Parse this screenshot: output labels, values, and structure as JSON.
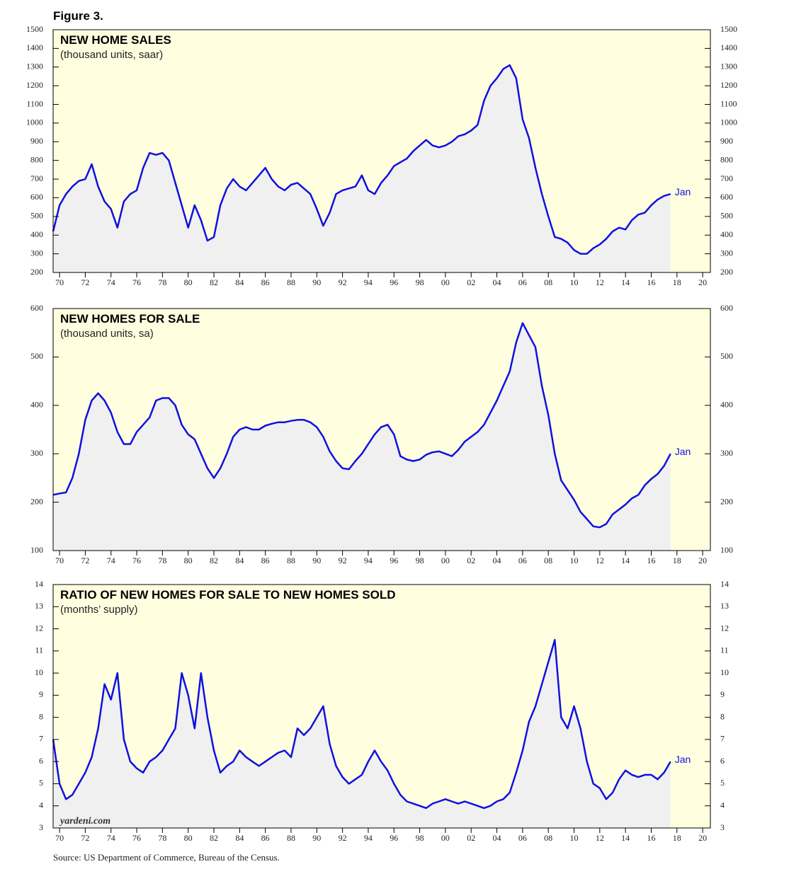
{
  "figure_label": "Figure 3.",
  "watermark": "yardeni.com",
  "source": "Source: US Department of Commerce, Bureau of the Census.",
  "chart_data": [
    {
      "type": "line",
      "title": "NEW HOME SALES",
      "subtitle": "(thousand units, saar)",
      "annotation": "Jan",
      "color": "#1010e0",
      "fill": "#f0f0f0",
      "background": "#ffffe0",
      "xlim": [
        1969.5,
        2020.6
      ],
      "ylim": [
        200,
        1500
      ],
      "yticks": [
        200,
        300,
        400,
        500,
        600,
        700,
        800,
        900,
        1000,
        1100,
        1200,
        1300,
        1400,
        1500
      ],
      "xticks": [
        {
          "value": 1970,
          "label": "70"
        },
        {
          "value": 1972,
          "label": "72"
        },
        {
          "value": 1974,
          "label": "74"
        },
        {
          "value": 1976,
          "label": "76"
        },
        {
          "value": 1978,
          "label": "78"
        },
        {
          "value": 1980,
          "label": "80"
        },
        {
          "value": 1982,
          "label": "82"
        },
        {
          "value": 1984,
          "label": "84"
        },
        {
          "value": 1986,
          "label": "86"
        },
        {
          "value": 1988,
          "label": "88"
        },
        {
          "value": 1990,
          "label": "90"
        },
        {
          "value": 1992,
          "label": "92"
        },
        {
          "value": 1994,
          "label": "94"
        },
        {
          "value": 1996,
          "label": "96"
        },
        {
          "value": 1998,
          "label": "98"
        },
        {
          "value": 2000,
          "label": "00"
        },
        {
          "value": 2002,
          "label": "02"
        },
        {
          "value": 2004,
          "label": "04"
        },
        {
          "value": 2006,
          "label": "06"
        },
        {
          "value": 2008,
          "label": "08"
        },
        {
          "value": 2010,
          "label": "10"
        },
        {
          "value": 2012,
          "label": "12"
        },
        {
          "value": 2014,
          "label": "14"
        },
        {
          "value": 2016,
          "label": "16"
        },
        {
          "value": 2018,
          "label": "18"
        },
        {
          "value": 2020,
          "label": "20"
        }
      ],
      "x": [
        1969.5,
        1970,
        1970.5,
        1971,
        1971.5,
        1972,
        1972.5,
        1973,
        1973.5,
        1974,
        1974.5,
        1975,
        1975.5,
        1976,
        1976.5,
        1977,
        1977.5,
        1978,
        1978.5,
        1979,
        1979.5,
        1980,
        1980.5,
        1981,
        1981.5,
        1982,
        1982.5,
        1983,
        1983.5,
        1984,
        1984.5,
        1985,
        1985.5,
        1986,
        1986.5,
        1987,
        1987.5,
        1988,
        1988.5,
        1989,
        1989.5,
        1990,
        1990.5,
        1991,
        1991.5,
        1992,
        1992.5,
        1993,
        1993.5,
        1994,
        1994.5,
        1995,
        1995.5,
        1996,
        1996.5,
        1997,
        1997.5,
        1998,
        1998.5,
        1999,
        1999.5,
        2000,
        2000.5,
        2001,
        2001.5,
        2002,
        2002.5,
        2003,
        2003.5,
        2004,
        2004.5,
        2005,
        2005.5,
        2006,
        2006.5,
        2007,
        2007.5,
        2008,
        2008.5,
        2009,
        2009.5,
        2010,
        2010.5,
        2011,
        2011.5,
        2012,
        2012.5,
        2013,
        2013.5,
        2014,
        2014.5,
        2015,
        2015.5,
        2016,
        2016.5,
        2017,
        2017.5
      ],
      "values": [
        420,
        560,
        620,
        660,
        690,
        700,
        780,
        660,
        580,
        540,
        440,
        580,
        620,
        640,
        760,
        840,
        830,
        840,
        800,
        680,
        560,
        440,
        560,
        480,
        370,
        390,
        560,
        650,
        700,
        660,
        640,
        680,
        720,
        760,
        700,
        660,
        640,
        670,
        680,
        650,
        620,
        540,
        450,
        520,
        620,
        640,
        650,
        660,
        720,
        640,
        620,
        680,
        720,
        770,
        790,
        810,
        850,
        880,
        910,
        880,
        870,
        880,
        900,
        930,
        940,
        960,
        990,
        1120,
        1200,
        1240,
        1290,
        1310,
        1240,
        1020,
        920,
        760,
        620,
        500,
        390,
        380,
        360,
        320,
        300,
        300,
        330,
        350,
        380,
        420,
        440,
        430,
        480,
        510,
        520,
        560,
        590,
        610,
        620
      ]
    },
    {
      "type": "line",
      "title": "NEW HOMES FOR SALE",
      "subtitle": "(thousand units, sa)",
      "annotation": "Jan",
      "color": "#1010e0",
      "fill": "#f0f0f0",
      "background": "#ffffe0",
      "xlim": [
        1969.5,
        2020.6
      ],
      "ylim": [
        100,
        600
      ],
      "yticks": [
        100,
        200,
        300,
        400,
        500,
        600
      ],
      "xticks": [
        {
          "value": 1970,
          "label": "70"
        },
        {
          "value": 1972,
          "label": "72"
        },
        {
          "value": 1974,
          "label": "74"
        },
        {
          "value": 1976,
          "label": "76"
        },
        {
          "value": 1978,
          "label": "78"
        },
        {
          "value": 1980,
          "label": "80"
        },
        {
          "value": 1982,
          "label": "82"
        },
        {
          "value": 1984,
          "label": "84"
        },
        {
          "value": 1986,
          "label": "86"
        },
        {
          "value": 1988,
          "label": "88"
        },
        {
          "value": 1990,
          "label": "90"
        },
        {
          "value": 1992,
          "label": "92"
        },
        {
          "value": 1994,
          "label": "94"
        },
        {
          "value": 1996,
          "label": "96"
        },
        {
          "value": 1998,
          "label": "98"
        },
        {
          "value": 2000,
          "label": "00"
        },
        {
          "value": 2002,
          "label": "02"
        },
        {
          "value": 2004,
          "label": "04"
        },
        {
          "value": 2006,
          "label": "06"
        },
        {
          "value": 2008,
          "label": "08"
        },
        {
          "value": 2010,
          "label": "10"
        },
        {
          "value": 2012,
          "label": "12"
        },
        {
          "value": 2014,
          "label": "14"
        },
        {
          "value": 2016,
          "label": "16"
        },
        {
          "value": 2018,
          "label": "18"
        },
        {
          "value": 2020,
          "label": "20"
        }
      ],
      "x": [
        1969.5,
        1970,
        1970.5,
        1971,
        1971.5,
        1972,
        1972.5,
        1973,
        1973.5,
        1974,
        1974.5,
        1975,
        1975.5,
        1976,
        1976.5,
        1977,
        1977.5,
        1978,
        1978.5,
        1979,
        1979.5,
        1980,
        1980.5,
        1981,
        1981.5,
        1982,
        1982.5,
        1983,
        1983.5,
        1984,
        1984.5,
        1985,
        1985.5,
        1986,
        1986.5,
        1987,
        1987.5,
        1988,
        1988.5,
        1989,
        1989.5,
        1990,
        1990.5,
        1991,
        1991.5,
        1992,
        1992.5,
        1993,
        1993.5,
        1994,
        1994.5,
        1995,
        1995.5,
        1996,
        1996.5,
        1997,
        1997.5,
        1998,
        1998.5,
        1999,
        1999.5,
        2000,
        2000.5,
        2001,
        2001.5,
        2002,
        2002.5,
        2003,
        2003.5,
        2004,
        2004.5,
        2005,
        2005.5,
        2006,
        2006.5,
        2007,
        2007.5,
        2008,
        2008.5,
        2009,
        2009.5,
        2010,
        2010.5,
        2011,
        2011.5,
        2012,
        2012.5,
        2013,
        2013.5,
        2014,
        2014.5,
        2015,
        2015.5,
        2016,
        2016.5,
        2017,
        2017.5
      ],
      "values": [
        215,
        218,
        220,
        250,
        300,
        370,
        410,
        425,
        410,
        385,
        345,
        320,
        320,
        345,
        360,
        375,
        410,
        415,
        415,
        400,
        360,
        340,
        330,
        300,
        270,
        250,
        270,
        300,
        335,
        350,
        355,
        350,
        350,
        358,
        362,
        365,
        365,
        368,
        370,
        370,
        365,
        355,
        335,
        305,
        285,
        270,
        268,
        285,
        300,
        320,
        340,
        355,
        360,
        340,
        295,
        288,
        285,
        288,
        298,
        303,
        305,
        300,
        295,
        308,
        325,
        335,
        345,
        360,
        385,
        410,
        440,
        470,
        530,
        570,
        545,
        520,
        440,
        380,
        300,
        245,
        225,
        205,
        180,
        165,
        150,
        148,
        155,
        175,
        185,
        195,
        208,
        215,
        235,
        248,
        258,
        275,
        300
      ]
    },
    {
      "type": "line",
      "title": "RATIO OF NEW HOMES FOR SALE TO NEW HOMES SOLD",
      "subtitle": "(months’ supply)",
      "annotation": "Jan",
      "color": "#1010e0",
      "fill": "#f0f0f0",
      "background": "#ffffe0",
      "xlim": [
        1969.5,
        2020.6
      ],
      "ylim": [
        3,
        14
      ],
      "yticks": [
        3,
        4,
        5,
        6,
        7,
        8,
        9,
        10,
        11,
        12,
        13,
        14
      ],
      "xticks": [
        {
          "value": 1970,
          "label": "70"
        },
        {
          "value": 1972,
          "label": "72"
        },
        {
          "value": 1974,
          "label": "74"
        },
        {
          "value": 1976,
          "label": "76"
        },
        {
          "value": 1978,
          "label": "78"
        },
        {
          "value": 1980,
          "label": "80"
        },
        {
          "value": 1982,
          "label": "82"
        },
        {
          "value": 1984,
          "label": "84"
        },
        {
          "value": 1986,
          "label": "86"
        },
        {
          "value": 1988,
          "label": "88"
        },
        {
          "value": 1990,
          "label": "90"
        },
        {
          "value": 1992,
          "label": "92"
        },
        {
          "value": 1994,
          "label": "94"
        },
        {
          "value": 1996,
          "label": "96"
        },
        {
          "value": 1998,
          "label": "98"
        },
        {
          "value": 2000,
          "label": "00"
        },
        {
          "value": 2002,
          "label": "02"
        },
        {
          "value": 2004,
          "label": "04"
        },
        {
          "value": 2006,
          "label": "06"
        },
        {
          "value": 2008,
          "label": "08"
        },
        {
          "value": 2010,
          "label": "10"
        },
        {
          "value": 2012,
          "label": "12"
        },
        {
          "value": 2014,
          "label": "14"
        },
        {
          "value": 2016,
          "label": "16"
        },
        {
          "value": 2018,
          "label": "18"
        },
        {
          "value": 2020,
          "label": "20"
        }
      ],
      "x": [
        1969.5,
        1970,
        1970.5,
        1971,
        1971.5,
        1972,
        1972.5,
        1973,
        1973.5,
        1974,
        1974.5,
        1975,
        1975.5,
        1976,
        1976.5,
        1977,
        1977.5,
        1978,
        1978.5,
        1979,
        1979.5,
        1980,
        1980.5,
        1981,
        1981.5,
        1982,
        1982.5,
        1983,
        1983.5,
        1984,
        1984.5,
        1985,
        1985.5,
        1986,
        1986.5,
        1987,
        1987.5,
        1988,
        1988.5,
        1989,
        1989.5,
        1990,
        1990.5,
        1991,
        1991.5,
        1992,
        1992.5,
        1993,
        1993.5,
        1994,
        1994.5,
        1995,
        1995.5,
        1996,
        1996.5,
        1997,
        1997.5,
        1998,
        1998.5,
        1999,
        1999.5,
        2000,
        2000.5,
        2001,
        2001.5,
        2002,
        2002.5,
        2003,
        2003.5,
        2004,
        2004.5,
        2005,
        2005.5,
        2006,
        2006.5,
        2007,
        2007.5,
        2008,
        2008.5,
        2009,
        2009.5,
        2010,
        2010.5,
        2011,
        2011.5,
        2012,
        2012.5,
        2013,
        2013.5,
        2014,
        2014.5,
        2015,
        2015.5,
        2016,
        2016.5,
        2017,
        2017.5
      ],
      "values": [
        7,
        5,
        4.3,
        4.5,
        5,
        5.5,
        6.2,
        7.5,
        9.5,
        8.8,
        10,
        7,
        6,
        5.7,
        5.5,
        6,
        6.2,
        6.5,
        7,
        7.5,
        10,
        9,
        7.5,
        10,
        8,
        6.5,
        5.5,
        5.8,
        6,
        6.5,
        6.2,
        6,
        5.8,
        6,
        6.2,
        6.4,
        6.5,
        6.2,
        7.5,
        7.2,
        7.5,
        8,
        8.5,
        6.8,
        5.8,
        5.3,
        5,
        5.2,
        5.4,
        6,
        6.5,
        6,
        5.6,
        5,
        4.5,
        4.2,
        4.1,
        4,
        3.9,
        4.1,
        4.2,
        4.3,
        4.2,
        4.1,
        4.2,
        4.1,
        4,
        3.9,
        4,
        4.2,
        4.3,
        4.6,
        5.5,
        6.5,
        7.8,
        8.5,
        9.5,
        10.5,
        11.5,
        8,
        7.5,
        8.5,
        7.5,
        6,
        5,
        4.8,
        4.3,
        4.6,
        5.2,
        5.6,
        5.4,
        5.3,
        5.4,
        5.4,
        5.2,
        5.5,
        6
      ]
    }
  ]
}
